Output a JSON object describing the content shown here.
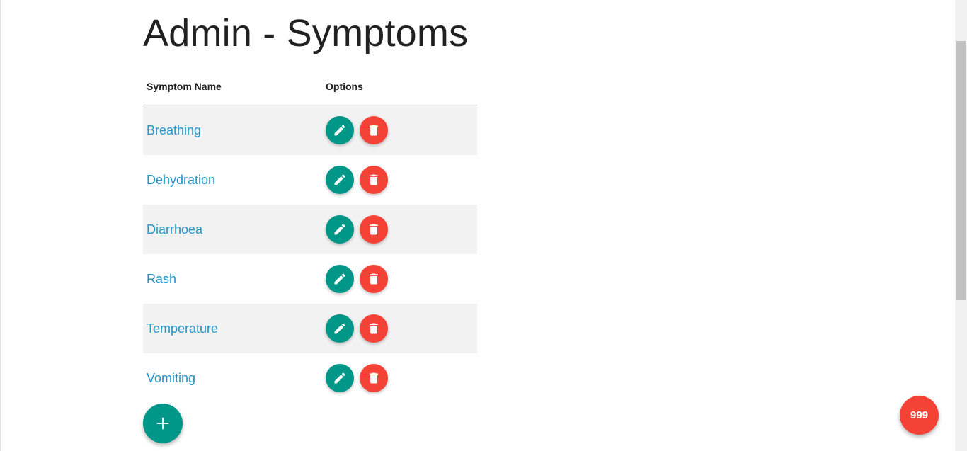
{
  "page": {
    "title": "Admin - Symptoms"
  },
  "table": {
    "headers": {
      "name": "Symptom Name",
      "options": "Options"
    },
    "rows": [
      {
        "name": "Breathing"
      },
      {
        "name": "Dehydration"
      },
      {
        "name": "Diarrhoea"
      },
      {
        "name": "Rash"
      },
      {
        "name": "Temperature"
      },
      {
        "name": "Vomiting"
      }
    ]
  },
  "icons": {
    "edit": "pencil-icon",
    "delete": "trash-icon",
    "add": "plus-icon"
  },
  "badge": {
    "label": "999"
  },
  "colors": {
    "link": "#2196c9",
    "edit": "#009688",
    "delete": "#f44336",
    "add": "#009688",
    "badge": "#f44336",
    "stripe": "#f2f2f2"
  }
}
